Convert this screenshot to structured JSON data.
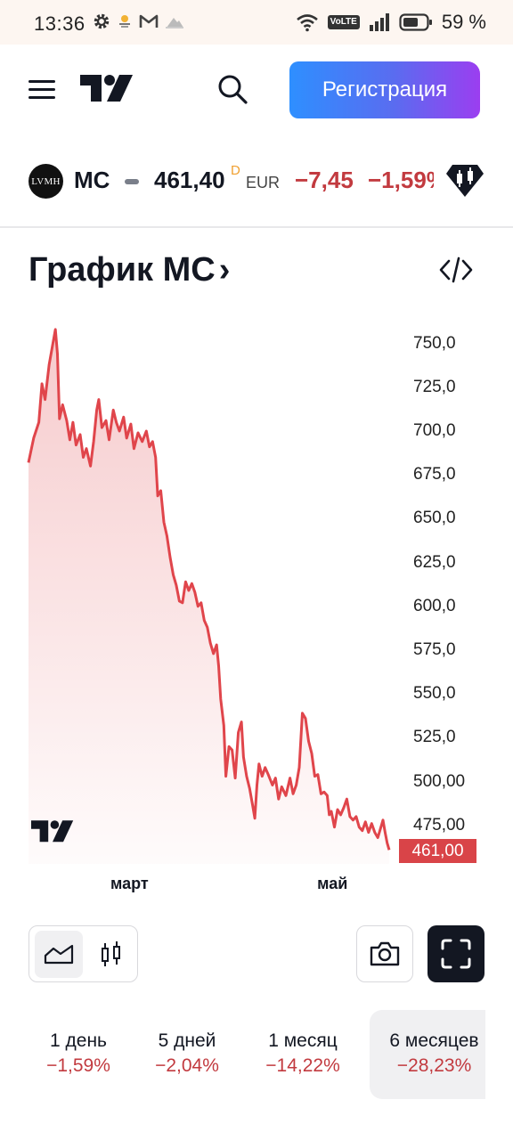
{
  "status_bar": {
    "time": "13:36",
    "battery_percent": "59 %",
    "volte": "VoLTE",
    "icons": [
      "gear-icon",
      "weather-icon",
      "gmail-icon",
      "cloud-icon",
      "wifi-icon",
      "volte-icon",
      "signal-icon",
      "battery-icon"
    ]
  },
  "header": {
    "menu_icon": "hamburger-icon",
    "logo": "tradingview-logo",
    "search_icon": "search-icon",
    "register_label": "Регистрация",
    "accent_gradient": [
      "#2e8fff",
      "#9b3ef0"
    ]
  },
  "ticker": {
    "avatar_text": "LVMH",
    "symbol": "MC",
    "price": "461,40",
    "delay_flag": "D",
    "currency": "EUR",
    "change": "−7,45",
    "change_percent": "−1,59%",
    "badge_icon": "candles-badge-icon",
    "negative_color": "#c23a3f"
  },
  "chart_section": {
    "title": "График MC",
    "chevron": "›",
    "embed_icon": "code-icon",
    "last_price_tag": "461,00",
    "watermark": "tradingview-logo"
  },
  "chart_data": {
    "type": "area",
    "title": "",
    "xlabel": "",
    "ylabel": "",
    "y_tick_labels": [
      "750,0",
      "725,0",
      "700,0",
      "675,0",
      "650,0",
      "625,0",
      "600,0",
      "575,0",
      "550,0",
      "525,0",
      "500,00",
      "475,00"
    ],
    "ylim": [
      453,
      762
    ],
    "x_tick_labels": [
      {
        "label": "март",
        "x": 1.0
      },
      {
        "label": "май",
        "x": 3.0
      }
    ],
    "xlim": [
      0,
      4
    ],
    "line_color": "#e0454b",
    "series": [
      {
        "values": [
          [
            0.0,
            682
          ],
          [
            0.05,
            696
          ],
          [
            0.1,
            705
          ],
          [
            0.13,
            727
          ],
          [
            0.16,
            718
          ],
          [
            0.2,
            738
          ],
          [
            0.23,
            748
          ],
          [
            0.26,
            758
          ],
          [
            0.28,
            744
          ],
          [
            0.3,
            707
          ],
          [
            0.33,
            715
          ],
          [
            0.37,
            706
          ],
          [
            0.4,
            695
          ],
          [
            0.43,
            705
          ],
          [
            0.46,
            692
          ],
          [
            0.5,
            698
          ],
          [
            0.53,
            685
          ],
          [
            0.56,
            690
          ],
          [
            0.6,
            680
          ],
          [
            0.63,
            694
          ],
          [
            0.66,
            712
          ],
          [
            0.68,
            718
          ],
          [
            0.71,
            702
          ],
          [
            0.75,
            706
          ],
          [
            0.78,
            695
          ],
          [
            0.82,
            712
          ],
          [
            0.85,
            705
          ],
          [
            0.88,
            700
          ],
          [
            0.92,
            708
          ],
          [
            0.95,
            696
          ],
          [
            0.99,
            704
          ],
          [
            1.02,
            690
          ],
          [
            1.06,
            699
          ],
          [
            1.1,
            694
          ],
          [
            1.14,
            700
          ],
          [
            1.17,
            691
          ],
          [
            1.2,
            694
          ],
          [
            1.23,
            685
          ],
          [
            1.25,
            663
          ],
          [
            1.28,
            666
          ],
          [
            1.31,
            648
          ],
          [
            1.34,
            640
          ],
          [
            1.37,
            628
          ],
          [
            1.4,
            618
          ],
          [
            1.43,
            612
          ],
          [
            1.46,
            603
          ],
          [
            1.49,
            602
          ],
          [
            1.52,
            614
          ],
          [
            1.55,
            609
          ],
          [
            1.58,
            613
          ],
          [
            1.61,
            608
          ],
          [
            1.64,
            600
          ],
          [
            1.67,
            602
          ],
          [
            1.7,
            592
          ],
          [
            1.73,
            588
          ],
          [
            1.76,
            579
          ],
          [
            1.79,
            573
          ],
          [
            1.82,
            578
          ],
          [
            1.84,
            566
          ],
          [
            1.86,
            547
          ],
          [
            1.89,
            532
          ],
          [
            1.91,
            503
          ],
          [
            1.94,
            520
          ],
          [
            1.97,
            518
          ],
          [
            2.0,
            502
          ],
          [
            2.03,
            528
          ],
          [
            2.06,
            534
          ],
          [
            2.08,
            514
          ],
          [
            2.11,
            503
          ],
          [
            2.14,
            496
          ],
          [
            2.17,
            486
          ],
          [
            2.19,
            479
          ],
          [
            2.21,
            498
          ],
          [
            2.23,
            510
          ],
          [
            2.26,
            503
          ],
          [
            2.29,
            508
          ],
          [
            2.32,
            504
          ],
          [
            2.36,
            498
          ],
          [
            2.39,
            502
          ],
          [
            2.42,
            490
          ],
          [
            2.45,
            497
          ],
          [
            2.49,
            492
          ],
          [
            2.53,
            502
          ],
          [
            2.56,
            493
          ],
          [
            2.59,
            498
          ],
          [
            2.62,
            508
          ],
          [
            2.65,
            539
          ],
          [
            2.68,
            536
          ],
          [
            2.71,
            523
          ],
          [
            2.74,
            516
          ],
          [
            2.77,
            503
          ],
          [
            2.8,
            504
          ],
          [
            2.83,
            493
          ],
          [
            2.86,
            494
          ],
          [
            2.89,
            492
          ],
          [
            2.91,
            481
          ],
          [
            2.93,
            483
          ],
          [
            2.96,
            474
          ],
          [
            2.99,
            484
          ],
          [
            3.02,
            481
          ],
          [
            3.05,
            485
          ],
          [
            3.08,
            490
          ],
          [
            3.11,
            480
          ],
          [
            3.14,
            478
          ],
          [
            3.17,
            480
          ],
          [
            3.2,
            474
          ],
          [
            3.23,
            472
          ],
          [
            3.26,
            477
          ],
          [
            3.29,
            471
          ],
          [
            3.32,
            476
          ],
          [
            3.35,
            471
          ],
          [
            3.38,
            468
          ],
          [
            3.41,
            474
          ],
          [
            3.43,
            478
          ],
          [
            3.45,
            471
          ],
          [
            3.47,
            465
          ],
          [
            3.49,
            461
          ]
        ]
      }
    ]
  },
  "toolbar": {
    "line_chart_icon": "area-chart-icon",
    "candles_icon": "candlestick-icon",
    "camera_icon": "camera-icon",
    "fullscreen_icon": "fullscreen-icon"
  },
  "periods": [
    {
      "label": "1 день",
      "change": "−1,59%",
      "active": false
    },
    {
      "label": "5 дней",
      "change": "−2,04%",
      "active": false
    },
    {
      "label": "1 месяц",
      "change": "−14,22%",
      "active": false
    },
    {
      "label": "6 месяцев",
      "change": "−28,23%",
      "active": true
    }
  ]
}
